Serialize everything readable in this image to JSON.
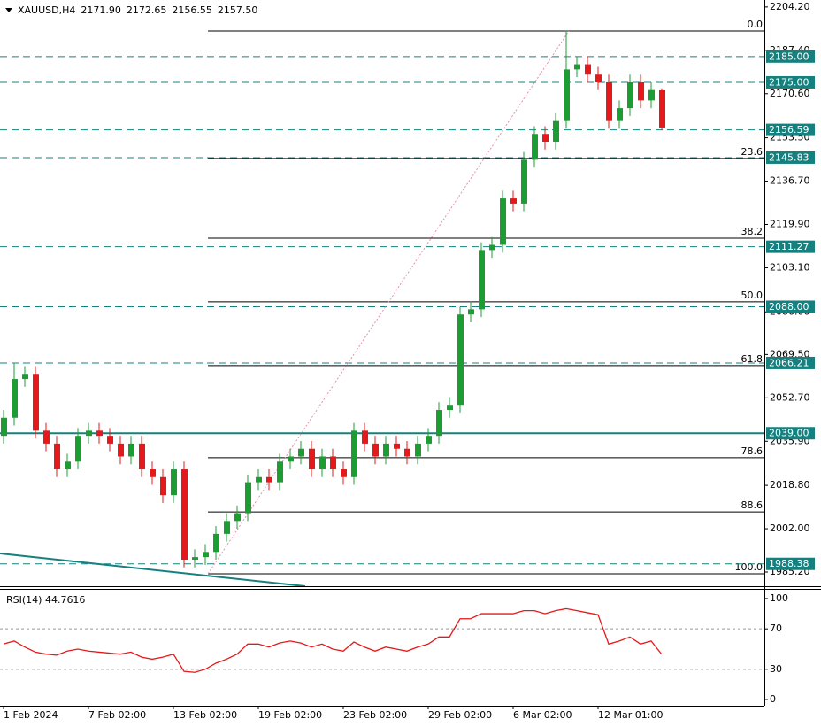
{
  "chart_data": [
    {
      "type": "candlestick",
      "title": "XAUUSD,H4",
      "header_values": [
        {
          "value": 2171.9,
          "label": "2171.90"
        },
        {
          "value": 2172.65,
          "label": "2172.65"
        },
        {
          "value": 2156.55,
          "label": "2156.55"
        },
        {
          "value": 2157.5,
          "label": "2157.50"
        }
      ],
      "open": [
        2038,
        2045,
        2060,
        2062,
        2040,
        2035,
        2025,
        2028,
        2038,
        2040,
        2038,
        2035,
        2030,
        2035,
        2025,
        2022,
        2015,
        2025,
        1990,
        1991,
        1993,
        2000,
        2005,
        2008,
        2020,
        2022,
        2020,
        2028,
        2030,
        2033,
        2025,
        2030,
        2025,
        2022,
        2040,
        2035,
        2030,
        2035,
        2033,
        2030,
        2035,
        2038,
        2048,
        2050,
        2085,
        2087,
        2110,
        2112,
        2130,
        2128,
        2145,
        2155,
        2152,
        2160,
        2180,
        2182,
        2178,
        2175,
        2160,
        2165,
        2175,
        2168,
        2171.9
      ],
      "high": [
        2048,
        2066,
        2065,
        2065,
        2043,
        2038,
        2031,
        2041,
        2043,
        2043,
        2041,
        2038,
        2038,
        2038,
        2028,
        2025,
        2028,
        2028,
        1994,
        1996,
        2003,
        2008,
        2011,
        2023,
        2025,
        2025,
        2031,
        2033,
        2036,
        2036,
        2033,
        2033,
        2028,
        2043,
        2043,
        2038,
        2038,
        2038,
        2036,
        2038,
        2041,
        2051,
        2053,
        2088,
        2090,
        2113,
        2115,
        2133,
        2133,
        2148,
        2158,
        2158,
        2163,
        2195,
        2185,
        2185,
        2181,
        2178,
        2168,
        2178,
        2178,
        2175,
        2172.65
      ],
      "low": [
        2035,
        2042,
        2057,
        2037,
        2032,
        2022,
        2022,
        2025,
        2035,
        2035,
        2032,
        2027,
        2027,
        2022,
        2019,
        2012,
        2012,
        1987,
        1987,
        1988,
        1990,
        1997,
        2002,
        2005,
        2017,
        2017,
        2017,
        2025,
        2027,
        2022,
        2022,
        2022,
        2019,
        2019,
        2032,
        2027,
        2027,
        2030,
        2027,
        2027,
        2032,
        2035,
        2045,
        2047,
        2082,
        2084,
        2107,
        2109,
        2125,
        2125,
        2142,
        2149,
        2149,
        2157,
        2177,
        2175,
        2172,
        2157,
        2157,
        2162,
        2165,
        2165,
        2156.55
      ],
      "close": [
        2045,
        2060,
        2062,
        2040,
        2035,
        2025,
        2028,
        2038,
        2040,
        2038,
        2035,
        2030,
        2035,
        2025,
        2022,
        2015,
        2025,
        1990,
        1991,
        1993,
        2000,
        2005,
        2008,
        2020,
        2022,
        2020,
        2028,
        2030,
        2033,
        2025,
        2030,
        2025,
        2022,
        2040,
        2035,
        2030,
        2035,
        2033,
        2030,
        2035,
        2038,
        2048,
        2050,
        2085,
        2087,
        2110,
        2112,
        2130,
        2128,
        2145,
        2155,
        2152,
        2160,
        2180,
        2182,
        2178,
        2175,
        2160,
        2165,
        2175,
        2168,
        2172,
        2157.5
      ],
      "up_color": "#1e9c34",
      "down_color": "#e3191b",
      "ylim": [
        1980.4,
        2206.9
      ],
      "yticks": [
        {
          "value": 2204.2,
          "label": "2204.20"
        },
        {
          "value": 2187.4,
          "label": "2187.40"
        },
        {
          "value": 2170.6,
          "label": "2170.60"
        },
        {
          "value": 2153.5,
          "label": "2153.50"
        },
        {
          "value": 2136.7,
          "label": "2136.70"
        },
        {
          "value": 2119.9,
          "label": "2119.90"
        },
        {
          "value": 2103.1,
          "label": "2103.10"
        },
        {
          "value": 2086,
          "label": "2086.00"
        },
        {
          "value": 2069.5,
          "label": "2069.50"
        },
        {
          "value": 2052.7,
          "label": "2052.70"
        },
        {
          "value": 2035.9,
          "label": "2035.90"
        },
        {
          "value": 2018.8,
          "label": "2018.80"
        },
        {
          "value": 2002,
          "label": "2002.00"
        },
        {
          "value": 1985.2,
          "label": "1985.20"
        }
      ],
      "xticks": [
        {
          "value": 0,
          "label": "1 Feb 2024"
        },
        {
          "value": 8,
          "label": "7 Feb 02:00"
        },
        {
          "value": 16,
          "label": "13 Feb 02:00"
        },
        {
          "value": 24,
          "label": "19 Feb 02:00"
        },
        {
          "value": 32,
          "label": "23 Feb 02:00"
        },
        {
          "value": 40,
          "label": "29 Feb 02:00"
        },
        {
          "value": 48,
          "label": "6 Mar 02:00"
        },
        {
          "value": 56,
          "label": "12 Mar 01:00"
        }
      ],
      "levels": [
        {
          "value": 2185,
          "label": "2185.00",
          "style": "dashed"
        },
        {
          "value": 2175,
          "label": "2175.00",
          "style": "dashed"
        },
        {
          "value": 2156.59,
          "label": "2156.59",
          "style": "dashed"
        },
        {
          "value": 2145.83,
          "label": "2145.83",
          "style": "dashed"
        },
        {
          "value": 2111.27,
          "label": "2111.27",
          "style": "dashed"
        },
        {
          "value": 2088,
          "label": "2088.00",
          "style": "dashed"
        },
        {
          "value": 2066.21,
          "label": "2066.21",
          "style": "dashed"
        },
        {
          "value": 2039,
          "label": "2039.00",
          "style": "solid"
        },
        {
          "value": 1988.38,
          "label": "1988.38",
          "style": "dashed"
        }
      ],
      "level_color": "#16807f",
      "fib_levels": [
        {
          "value": 2194.9,
          "label": "0.0"
        },
        {
          "value": 2145.5,
          "label": "23.6"
        },
        {
          "value": 2114.6,
          "label": "38.2"
        },
        {
          "value": 2089.9,
          "label": "50.0"
        },
        {
          "value": 2065.2,
          "label": "61.8"
        },
        {
          "value": 2029.5,
          "label": "78.6"
        },
        {
          "value": 2008.5,
          "label": "88.6"
        },
        {
          "value": 1984.5,
          "label": "100.0"
        }
      ]
    },
    {
      "type": "line",
      "title": "RSI(14) 44.7616",
      "color": "#e3191b",
      "values": [
        55,
        58,
        52,
        47,
        45,
        44,
        48,
        50,
        48,
        47,
        46,
        45,
        47,
        42,
        40,
        42,
        45,
        28,
        27,
        30,
        36,
        40,
        45,
        55,
        55,
        52,
        56,
        58,
        56,
        52,
        55,
        50,
        48,
        57,
        52,
        48,
        52,
        50,
        48,
        52,
        55,
        62,
        62,
        80,
        80,
        85,
        85,
        85,
        85,
        88,
        88,
        85,
        88,
        90,
        88,
        86,
        84,
        55,
        58,
        62,
        55,
        58,
        44.7616
      ],
      "ylim": [
        -6.1,
        109.6
      ],
      "yticks": [
        100,
        70,
        30,
        0
      ],
      "levels": [
        70,
        30
      ]
    }
  ]
}
